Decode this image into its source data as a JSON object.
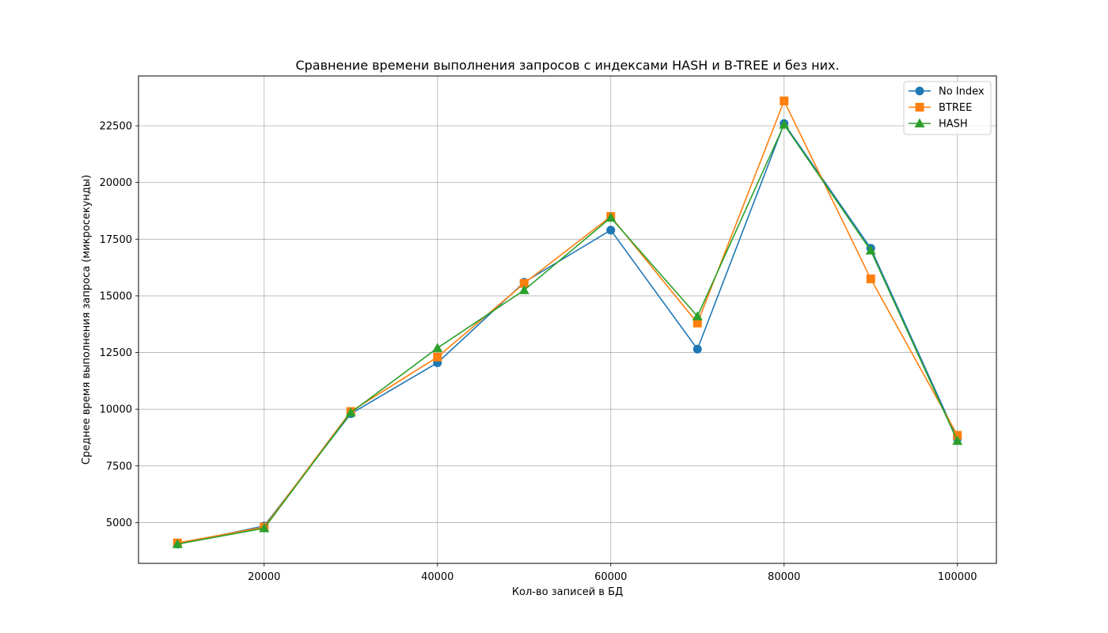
{
  "chart_data": {
    "type": "line",
    "title": "Сравнение времени выполнения запросов с индексами HASH и B-TREE и без них.",
    "xlabel": "Кол-во записей в БД",
    "ylabel": "Среднее время выполнения запроса (микросекунды)",
    "x": [
      10000,
      20000,
      30000,
      40000,
      50000,
      60000,
      70000,
      80000,
      90000,
      100000
    ],
    "xlim": [
      5500,
      104500
    ],
    "ylim": [
      3200,
      24700
    ],
    "xticks": [
      20000,
      40000,
      60000,
      80000,
      100000
    ],
    "yticks": [
      5000,
      7500,
      10000,
      12500,
      15000,
      17500,
      20000,
      22500
    ],
    "grid": true,
    "legend_position": "top-right",
    "series": [
      {
        "name": "No Index",
        "color": "#1f77b4",
        "marker": "circle",
        "values": [
          4050,
          4850,
          9800,
          12050,
          15600,
          17900,
          12650,
          22600,
          17100,
          8700
        ]
      },
      {
        "name": "BTREE",
        "color": "#ff7f0e",
        "marker": "square",
        "values": [
          4100,
          4800,
          9900,
          12300,
          15550,
          18500,
          13800,
          23600,
          15750,
          8850
        ]
      },
      {
        "name": "HASH",
        "color": "#2ca02c",
        "marker": "triangle",
        "values": [
          4050,
          4750,
          9850,
          12700,
          15250,
          18450,
          14100,
          22550,
          17000,
          8600
        ]
      }
    ]
  }
}
